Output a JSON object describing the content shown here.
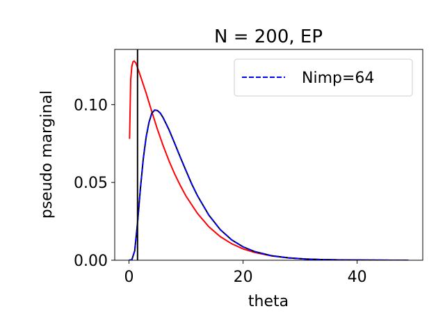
{
  "chart_data": {
    "type": "line",
    "title": "N = 200, EP",
    "xlabel": "theta",
    "ylabel": "pseudo marginal",
    "xlim": [
      -2.5,
      51.5
    ],
    "ylim": [
      0,
      0.1355
    ],
    "xticks": [
      0,
      20,
      40
    ],
    "xtick_labels": [
      "0",
      "20",
      "40"
    ],
    "yticks": [
      0.0,
      0.05,
      0.1
    ],
    "ytick_labels": [
      "0.00",
      "0.05",
      "0.10"
    ],
    "grid": false,
    "legend": {
      "placement": "top-right"
    },
    "vline": {
      "x": 1.5,
      "color": "#000000"
    },
    "series": [
      {
        "color": "#ff0000",
        "style": "solid",
        "x": [
          0.1,
          0.3,
          0.5,
          0.7,
          0.9,
          1.2,
          1.5,
          2,
          2.5,
          3,
          4,
          5,
          6,
          7,
          8,
          9,
          10,
          12,
          14,
          16,
          18,
          20,
          22,
          25,
          28,
          31,
          34,
          37,
          40,
          43,
          46,
          49
        ],
        "y": [
          0.078,
          0.116,
          0.1245,
          0.1275,
          0.128,
          0.1268,
          0.1238,
          0.1185,
          0.113,
          0.1075,
          0.0955,
          0.084,
          0.0735,
          0.064,
          0.0555,
          0.048,
          0.0412,
          0.0301,
          0.0215,
          0.0152,
          0.0106,
          0.0073,
          0.005,
          0.0028,
          0.0015,
          0.0008,
          0.0004,
          0.0002,
          0.0001,
          5e-05,
          2e-05,
          1e-05
        ]
      },
      {
        "name": "Nimp=64",
        "color": "#0000ff",
        "overlay_color": "#000000",
        "style": "dashed",
        "x": [
          0,
          0.5,
          1,
          1.5,
          2,
          2.5,
          3,
          3.5,
          4,
          4.5,
          5,
          5.5,
          6,
          7,
          8,
          9,
          10,
          11,
          12,
          14,
          16,
          18,
          20,
          22,
          25,
          28,
          31,
          34,
          37,
          40,
          43,
          46,
          49
        ],
        "y": [
          0,
          0.0003,
          0.006,
          0.024,
          0.046,
          0.065,
          0.079,
          0.0885,
          0.0945,
          0.0965,
          0.0962,
          0.0945,
          0.0915,
          0.084,
          0.0752,
          0.0662,
          0.0575,
          0.049,
          0.0415,
          0.029,
          0.0197,
          0.0131,
          0.0086,
          0.0056,
          0.0029,
          0.0015,
          0.0008,
          0.0004,
          0.0002,
          0.0001,
          5e-05,
          2e-05,
          1e-05
        ]
      }
    ]
  }
}
